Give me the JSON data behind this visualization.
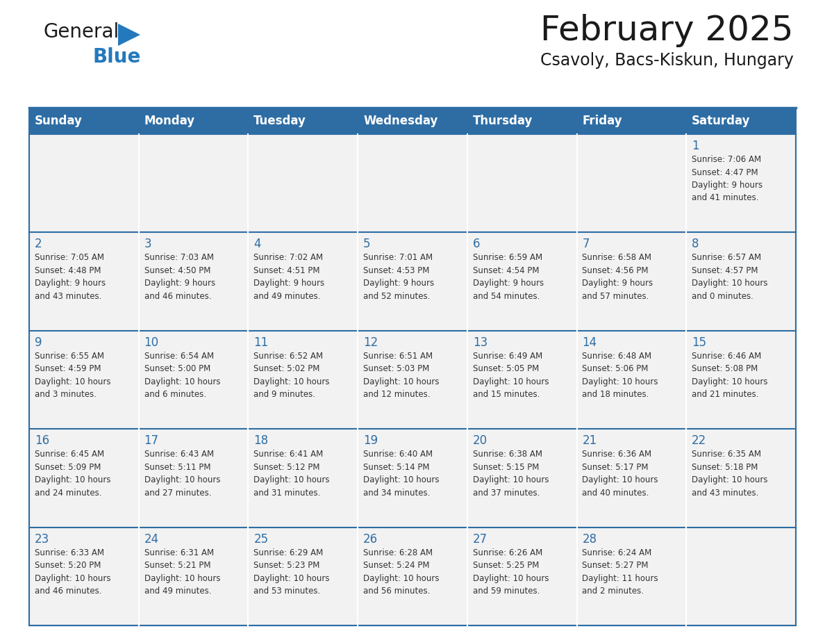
{
  "title": "February 2025",
  "subtitle": "Csavoly, Bacs-Kiskun, Hungary",
  "header_bg_color": "#2E6DA4",
  "header_text_color": "#FFFFFF",
  "cell_bg_color": "#F2F2F2",
  "day_number_color": "#2E6DA4",
  "text_color": "#333333",
  "border_color": "#2E6DA4",
  "days_of_week": [
    "Sunday",
    "Monday",
    "Tuesday",
    "Wednesday",
    "Thursday",
    "Friday",
    "Saturday"
  ],
  "weeks": [
    [
      {
        "day": null,
        "info": null
      },
      {
        "day": null,
        "info": null
      },
      {
        "day": null,
        "info": null
      },
      {
        "day": null,
        "info": null
      },
      {
        "day": null,
        "info": null
      },
      {
        "day": null,
        "info": null
      },
      {
        "day": 1,
        "info": "Sunrise: 7:06 AM\nSunset: 4:47 PM\nDaylight: 9 hours\nand 41 minutes."
      }
    ],
    [
      {
        "day": 2,
        "info": "Sunrise: 7:05 AM\nSunset: 4:48 PM\nDaylight: 9 hours\nand 43 minutes."
      },
      {
        "day": 3,
        "info": "Sunrise: 7:03 AM\nSunset: 4:50 PM\nDaylight: 9 hours\nand 46 minutes."
      },
      {
        "day": 4,
        "info": "Sunrise: 7:02 AM\nSunset: 4:51 PM\nDaylight: 9 hours\nand 49 minutes."
      },
      {
        "day": 5,
        "info": "Sunrise: 7:01 AM\nSunset: 4:53 PM\nDaylight: 9 hours\nand 52 minutes."
      },
      {
        "day": 6,
        "info": "Sunrise: 6:59 AM\nSunset: 4:54 PM\nDaylight: 9 hours\nand 54 minutes."
      },
      {
        "day": 7,
        "info": "Sunrise: 6:58 AM\nSunset: 4:56 PM\nDaylight: 9 hours\nand 57 minutes."
      },
      {
        "day": 8,
        "info": "Sunrise: 6:57 AM\nSunset: 4:57 PM\nDaylight: 10 hours\nand 0 minutes."
      }
    ],
    [
      {
        "day": 9,
        "info": "Sunrise: 6:55 AM\nSunset: 4:59 PM\nDaylight: 10 hours\nand 3 minutes."
      },
      {
        "day": 10,
        "info": "Sunrise: 6:54 AM\nSunset: 5:00 PM\nDaylight: 10 hours\nand 6 minutes."
      },
      {
        "day": 11,
        "info": "Sunrise: 6:52 AM\nSunset: 5:02 PM\nDaylight: 10 hours\nand 9 minutes."
      },
      {
        "day": 12,
        "info": "Sunrise: 6:51 AM\nSunset: 5:03 PM\nDaylight: 10 hours\nand 12 minutes."
      },
      {
        "day": 13,
        "info": "Sunrise: 6:49 AM\nSunset: 5:05 PM\nDaylight: 10 hours\nand 15 minutes."
      },
      {
        "day": 14,
        "info": "Sunrise: 6:48 AM\nSunset: 5:06 PM\nDaylight: 10 hours\nand 18 minutes."
      },
      {
        "day": 15,
        "info": "Sunrise: 6:46 AM\nSunset: 5:08 PM\nDaylight: 10 hours\nand 21 minutes."
      }
    ],
    [
      {
        "day": 16,
        "info": "Sunrise: 6:45 AM\nSunset: 5:09 PM\nDaylight: 10 hours\nand 24 minutes."
      },
      {
        "day": 17,
        "info": "Sunrise: 6:43 AM\nSunset: 5:11 PM\nDaylight: 10 hours\nand 27 minutes."
      },
      {
        "day": 18,
        "info": "Sunrise: 6:41 AM\nSunset: 5:12 PM\nDaylight: 10 hours\nand 31 minutes."
      },
      {
        "day": 19,
        "info": "Sunrise: 6:40 AM\nSunset: 5:14 PM\nDaylight: 10 hours\nand 34 minutes."
      },
      {
        "day": 20,
        "info": "Sunrise: 6:38 AM\nSunset: 5:15 PM\nDaylight: 10 hours\nand 37 minutes."
      },
      {
        "day": 21,
        "info": "Sunrise: 6:36 AM\nSunset: 5:17 PM\nDaylight: 10 hours\nand 40 minutes."
      },
      {
        "day": 22,
        "info": "Sunrise: 6:35 AM\nSunset: 5:18 PM\nDaylight: 10 hours\nand 43 minutes."
      }
    ],
    [
      {
        "day": 23,
        "info": "Sunrise: 6:33 AM\nSunset: 5:20 PM\nDaylight: 10 hours\nand 46 minutes."
      },
      {
        "day": 24,
        "info": "Sunrise: 6:31 AM\nSunset: 5:21 PM\nDaylight: 10 hours\nand 49 minutes."
      },
      {
        "day": 25,
        "info": "Sunrise: 6:29 AM\nSunset: 5:23 PM\nDaylight: 10 hours\nand 53 minutes."
      },
      {
        "day": 26,
        "info": "Sunrise: 6:28 AM\nSunset: 5:24 PM\nDaylight: 10 hours\nand 56 minutes."
      },
      {
        "day": 27,
        "info": "Sunrise: 6:26 AM\nSunset: 5:25 PM\nDaylight: 10 hours\nand 59 minutes."
      },
      {
        "day": 28,
        "info": "Sunrise: 6:24 AM\nSunset: 5:27 PM\nDaylight: 11 hours\nand 2 minutes."
      },
      {
        "day": null,
        "info": null
      }
    ]
  ],
  "logo_color_general": "#1a1a1a",
  "logo_color_blue": "#2479BD",
  "logo_triangle_color": "#2479BD",
  "title_color": "#1a1a1a",
  "subtitle_color": "#1a1a1a",
  "title_fontsize": 36,
  "subtitle_fontsize": 17,
  "header_fontsize": 12,
  "day_num_fontsize": 12,
  "info_fontsize": 8.5
}
